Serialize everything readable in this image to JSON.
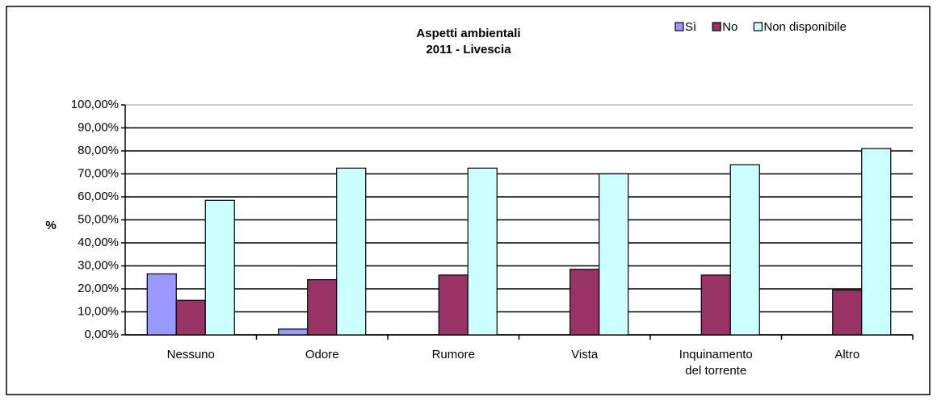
{
  "chart_data": {
    "type": "bar",
    "title": "Aspetti ambientali",
    "subtitle": "2011 - Livescia",
    "y_label": "%",
    "categories": [
      "Nessuno",
      "Odore",
      "Rumore",
      "Vista",
      "Inquinamento del torrente",
      "Altro"
    ],
    "series": [
      {
        "name": "Sì",
        "color": "#9999ff",
        "values": [
          26.5,
          2.5,
          0,
          0,
          0,
          0
        ]
      },
      {
        "name": "No",
        "color": "#993366",
        "values": [
          15,
          24,
          26,
          28.5,
          26,
          19.5
        ]
      },
      {
        "name": "Non disponibile",
        "color": "#ccffff",
        "values": [
          58.5,
          72.5,
          72.5,
          70,
          74,
          81
        ]
      }
    ],
    "ylim": [
      0,
      100
    ],
    "yticks": [
      {
        "value": 0,
        "label": "0,00%"
      },
      {
        "value": 10,
        "label": "10,00%"
      },
      {
        "value": 20,
        "label": "20,00%"
      },
      {
        "value": 30,
        "label": "30,00%"
      },
      {
        "value": 40,
        "label": "40,00%"
      },
      {
        "value": 50,
        "label": "50,00%"
      },
      {
        "value": 60,
        "label": "60,00%"
      },
      {
        "value": 70,
        "label": "70,00%"
      },
      {
        "value": 80,
        "label": "80,00%"
      },
      {
        "value": 90,
        "label": "90,00%"
      },
      {
        "value": 100,
        "label": "100,00%"
      }
    ],
    "grid": true,
    "legend": "top-right"
  }
}
